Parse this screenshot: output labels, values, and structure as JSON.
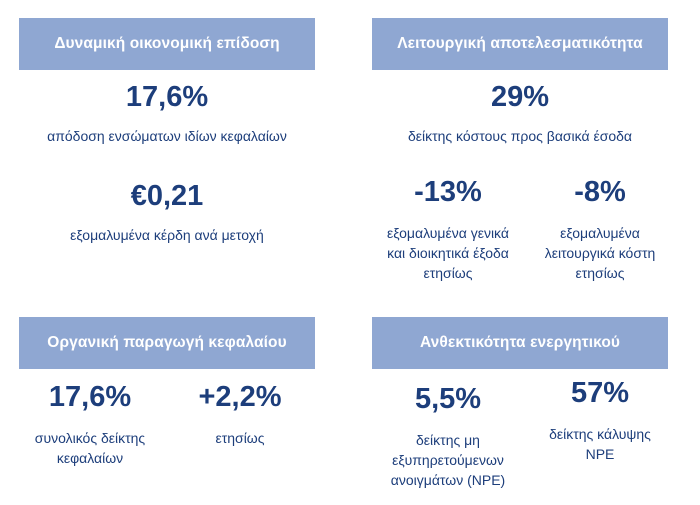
{
  "sections": [
    {
      "title": "Δυναμική οικονομική επίδοση",
      "metrics": [
        {
          "value": "17,6%",
          "label": [
            "απόδοση ενσώματων ιδίων κεφαλαίων"
          ]
        },
        {
          "value": "€0,21",
          "label": [
            "εξομαλυμένα κέρδη ανά μετοχή"
          ]
        }
      ]
    },
    {
      "title": "Λειτουργική αποτελεσματικότητα",
      "metrics": [
        {
          "value": "29%",
          "label": [
            "δείκτης κόστους προς βασικά έσοδα"
          ]
        },
        {
          "value": "-13%",
          "label": [
            "εξομαλυμένα γενικά",
            "και διοικητικά έξοδα",
            "ετησίως"
          ]
        },
        {
          "value": "-8%",
          "label": [
            "εξομαλυμένα",
            "λειτουργικά κόστη",
            "ετησίως"
          ]
        }
      ]
    },
    {
      "title": "Οργανική παραγωγή κεφαλαίου",
      "metrics": [
        {
          "value": "17,6%",
          "label": [
            "συνολικός δείκτης",
            "κεφαλαίων"
          ]
        },
        {
          "value": "+2,2%",
          "label": [
            "ετησίως"
          ]
        }
      ]
    },
    {
      "title": "Ανθεκτικότητα ενεργητικού",
      "metrics": [
        {
          "value": "5,5%",
          "label": [
            "δείκτης μη",
            "εξυπηρετούμενων",
            "ανοιγμάτων (NPE)"
          ]
        },
        {
          "value": "57%",
          "label": [
            "δείκτης κάλυψης",
            "NPE"
          ]
        }
      ]
    }
  ]
}
